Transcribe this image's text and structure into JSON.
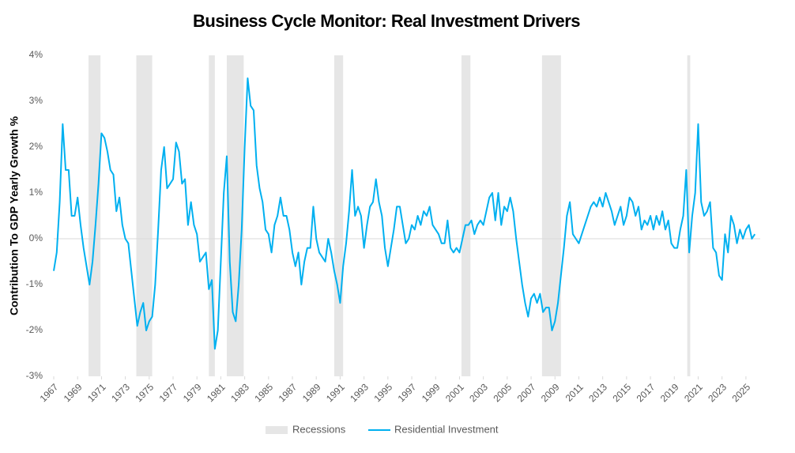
{
  "chart_data": {
    "type": "line",
    "title": "Business Cycle Monitor: Real Investment Drivers",
    "y_label": "Contribution To GDP Yearly Growth %",
    "recession_label": "Recessions",
    "recession_color": "#e6e6e6",
    "recessions": [
      [
        1969.917,
        1970.917
      ],
      [
        1973.917,
        1975.25
      ],
      [
        1980.0,
        1980.5
      ],
      [
        1981.5,
        1982.917
      ],
      [
        1990.5,
        1991.25
      ],
      [
        2001.167,
        2001.917
      ],
      [
        2007.917,
        2009.5
      ],
      [
        2020.083,
        2020.333
      ]
    ],
    "x": [
      1967,
      1967.25,
      1967.5,
      1967.75,
      1968,
      1968.25,
      1968.5,
      1968.75,
      1969,
      1969.25,
      1969.5,
      1969.75,
      1970,
      1970.25,
      1970.5,
      1970.75,
      1971,
      1971.25,
      1971.5,
      1971.75,
      1972,
      1972.25,
      1972.5,
      1972.75,
      1973,
      1973.25,
      1973.5,
      1973.75,
      1974,
      1974.25,
      1974.5,
      1974.75,
      1975,
      1975.25,
      1975.5,
      1975.75,
      1976,
      1976.25,
      1976.5,
      1976.75,
      1977,
      1977.25,
      1977.5,
      1977.75,
      1978,
      1978.25,
      1978.5,
      1978.75,
      1979,
      1979.25,
      1979.5,
      1979.75,
      1980,
      1980.25,
      1980.5,
      1980.75,
      1981,
      1981.25,
      1981.5,
      1981.75,
      1982,
      1982.25,
      1982.5,
      1982.75,
      1983,
      1983.25,
      1983.5,
      1983.75,
      1984,
      1984.25,
      1984.5,
      1984.75,
      1985,
      1985.25,
      1985.5,
      1985.75,
      1986,
      1986.25,
      1986.5,
      1986.75,
      1987,
      1987.25,
      1987.5,
      1987.75,
      1988,
      1988.25,
      1988.5,
      1988.75,
      1989,
      1989.25,
      1989.5,
      1989.75,
      1990,
      1990.25,
      1990.5,
      1990.75,
      1991,
      1991.25,
      1991.5,
      1991.75,
      1992,
      1992.25,
      1992.5,
      1992.75,
      1993,
      1993.25,
      1993.5,
      1993.75,
      1994,
      1994.25,
      1994.5,
      1994.75,
      1995,
      1995.25,
      1995.5,
      1995.75,
      1996,
      1996.25,
      1996.5,
      1996.75,
      1997,
      1997.25,
      1997.5,
      1997.75,
      1998,
      1998.25,
      1998.5,
      1998.75,
      1999,
      1999.25,
      1999.5,
      1999.75,
      2000,
      2000.25,
      2000.5,
      2000.75,
      2001,
      2001.25,
      2001.5,
      2001.75,
      2002,
      2002.25,
      2002.5,
      2002.75,
      2003,
      2003.25,
      2003.5,
      2003.75,
      2004,
      2004.25,
      2004.5,
      2004.75,
      2005,
      2005.25,
      2005.5,
      2005.75,
      2006,
      2006.25,
      2006.5,
      2006.75,
      2007,
      2007.25,
      2007.5,
      2007.75,
      2008,
      2008.25,
      2008.5,
      2008.75,
      2009,
      2009.25,
      2009.5,
      2009.75,
      2010,
      2010.25,
      2010.5,
      2010.75,
      2011,
      2011.25,
      2011.5,
      2011.75,
      2012,
      2012.25,
      2012.5,
      2012.75,
      2013,
      2013.25,
      2013.5,
      2013.75,
      2014,
      2014.25,
      2014.5,
      2014.75,
      2015,
      2015.25,
      2015.5,
      2015.75,
      2016,
      2016.25,
      2016.5,
      2016.75,
      2017,
      2017.25,
      2017.5,
      2017.75,
      2018,
      2018.25,
      2018.5,
      2018.75,
      2019,
      2019.25,
      2019.5,
      2019.75,
      2020,
      2020.25,
      2020.5,
      2020.75,
      2021,
      2021.25,
      2021.5,
      2021.75,
      2022,
      2022.25,
      2022.5,
      2022.75,
      2023,
      2023.25,
      2023.5,
      2023.75,
      2024,
      2024.25,
      2024.5,
      2024.75,
      2025,
      2025.25,
      2025.5,
      2025.75
    ],
    "series": [
      {
        "name": "Residential Investment",
        "color": "#00b0f0",
        "values": [
          -0.7,
          -0.3,
          0.8,
          2.5,
          1.5,
          1.5,
          0.5,
          0.5,
          0.9,
          0.3,
          -0.2,
          -0.6,
          -1.0,
          -0.5,
          0.3,
          1.2,
          2.3,
          2.2,
          1.9,
          1.5,
          1.4,
          0.6,
          0.9,
          0.3,
          0.0,
          -0.1,
          -0.7,
          -1.3,
          -1.9,
          -1.6,
          -1.4,
          -2.0,
          -1.8,
          -1.7,
          -1.0,
          0.2,
          1.5,
          2.0,
          1.1,
          1.2,
          1.3,
          2.1,
          1.9,
          1.2,
          1.3,
          0.3,
          0.8,
          0.3,
          0.1,
          -0.5,
          -0.4,
          -0.3,
          -1.1,
          -0.9,
          -2.4,
          -2.0,
          -0.5,
          1.0,
          1.8,
          -0.5,
          -1.6,
          -1.8,
          -1.0,
          0.2,
          2.0,
          3.5,
          2.9,
          2.8,
          1.6,
          1.1,
          0.8,
          0.2,
          0.1,
          -0.3,
          0.3,
          0.5,
          0.9,
          0.5,
          0.5,
          0.2,
          -0.3,
          -0.6,
          -0.3,
          -1.0,
          -0.5,
          -0.2,
          -0.2,
          0.7,
          0.0,
          -0.3,
          -0.4,
          -0.5,
          0.0,
          -0.3,
          -0.7,
          -1.0,
          -1.4,
          -0.6,
          -0.1,
          0.6,
          1.5,
          0.5,
          0.7,
          0.5,
          -0.2,
          0.3,
          0.7,
          0.8,
          1.3,
          0.8,
          0.5,
          -0.2,
          -0.6,
          -0.2,
          0.2,
          0.7,
          0.7,
          0.3,
          -0.1,
          0.0,
          0.3,
          0.2,
          0.5,
          0.3,
          0.6,
          0.5,
          0.7,
          0.3,
          0.2,
          0.1,
          -0.1,
          -0.1,
          0.4,
          -0.2,
          -0.3,
          -0.2,
          -0.3,
          0.0,
          0.3,
          0.3,
          0.4,
          0.1,
          0.3,
          0.4,
          0.3,
          0.6,
          0.9,
          1.0,
          0.4,
          1.0,
          0.3,
          0.7,
          0.6,
          0.9,
          0.6,
          0.0,
          -0.5,
          -1.0,
          -1.4,
          -1.7,
          -1.3,
          -1.2,
          -1.4,
          -1.2,
          -1.6,
          -1.5,
          -1.5,
          -2.0,
          -1.8,
          -1.4,
          -0.8,
          -0.2,
          0.5,
          0.8,
          0.1,
          0.0,
          -0.1,
          0.1,
          0.3,
          0.5,
          0.7,
          0.8,
          0.7,
          0.9,
          0.7,
          1.0,
          0.8,
          0.6,
          0.3,
          0.5,
          0.7,
          0.3,
          0.5,
          0.9,
          0.8,
          0.5,
          0.7,
          0.2,
          0.4,
          0.3,
          0.5,
          0.2,
          0.5,
          0.3,
          0.6,
          0.2,
          0.4,
          -0.1,
          -0.2,
          -0.2,
          0.2,
          0.5,
          1.5,
          -0.3,
          0.5,
          1.0,
          2.5,
          0.8,
          0.5,
          0.6,
          0.8,
          -0.2,
          -0.3,
          -0.8,
          -0.9,
          0.1,
          -0.3,
          0.5,
          0.3,
          -0.1,
          0.2,
          0.0,
          0.2,
          0.3,
          0.0,
          0.1
        ]
      }
    ],
    "xlim": [
      1967,
      2026.2
    ],
    "xticks": [
      1967,
      1969,
      1971,
      1973,
      1975,
      1977,
      1979,
      1981,
      1983,
      1985,
      1987,
      1989,
      1991,
      1993,
      1995,
      1997,
      1999,
      2001,
      2003,
      2005,
      2007,
      2009,
      2011,
      2013,
      2015,
      2017,
      2019,
      2021,
      2023,
      2025
    ],
    "ylim": [
      -3,
      4
    ],
    "yticks": [
      {
        "value": -3,
        "label": "-3%"
      },
      {
        "value": -2,
        "label": "-2%"
      },
      {
        "value": -1,
        "label": "-1%"
      },
      {
        "value": 0,
        "label": "0%"
      },
      {
        "value": 1,
        "label": "1%"
      },
      {
        "value": 2,
        "label": "2%"
      },
      {
        "value": 3,
        "label": "3%"
      },
      {
        "value": 4,
        "label": "4%"
      }
    ],
    "zero_line": true,
    "legend": "bottom"
  }
}
